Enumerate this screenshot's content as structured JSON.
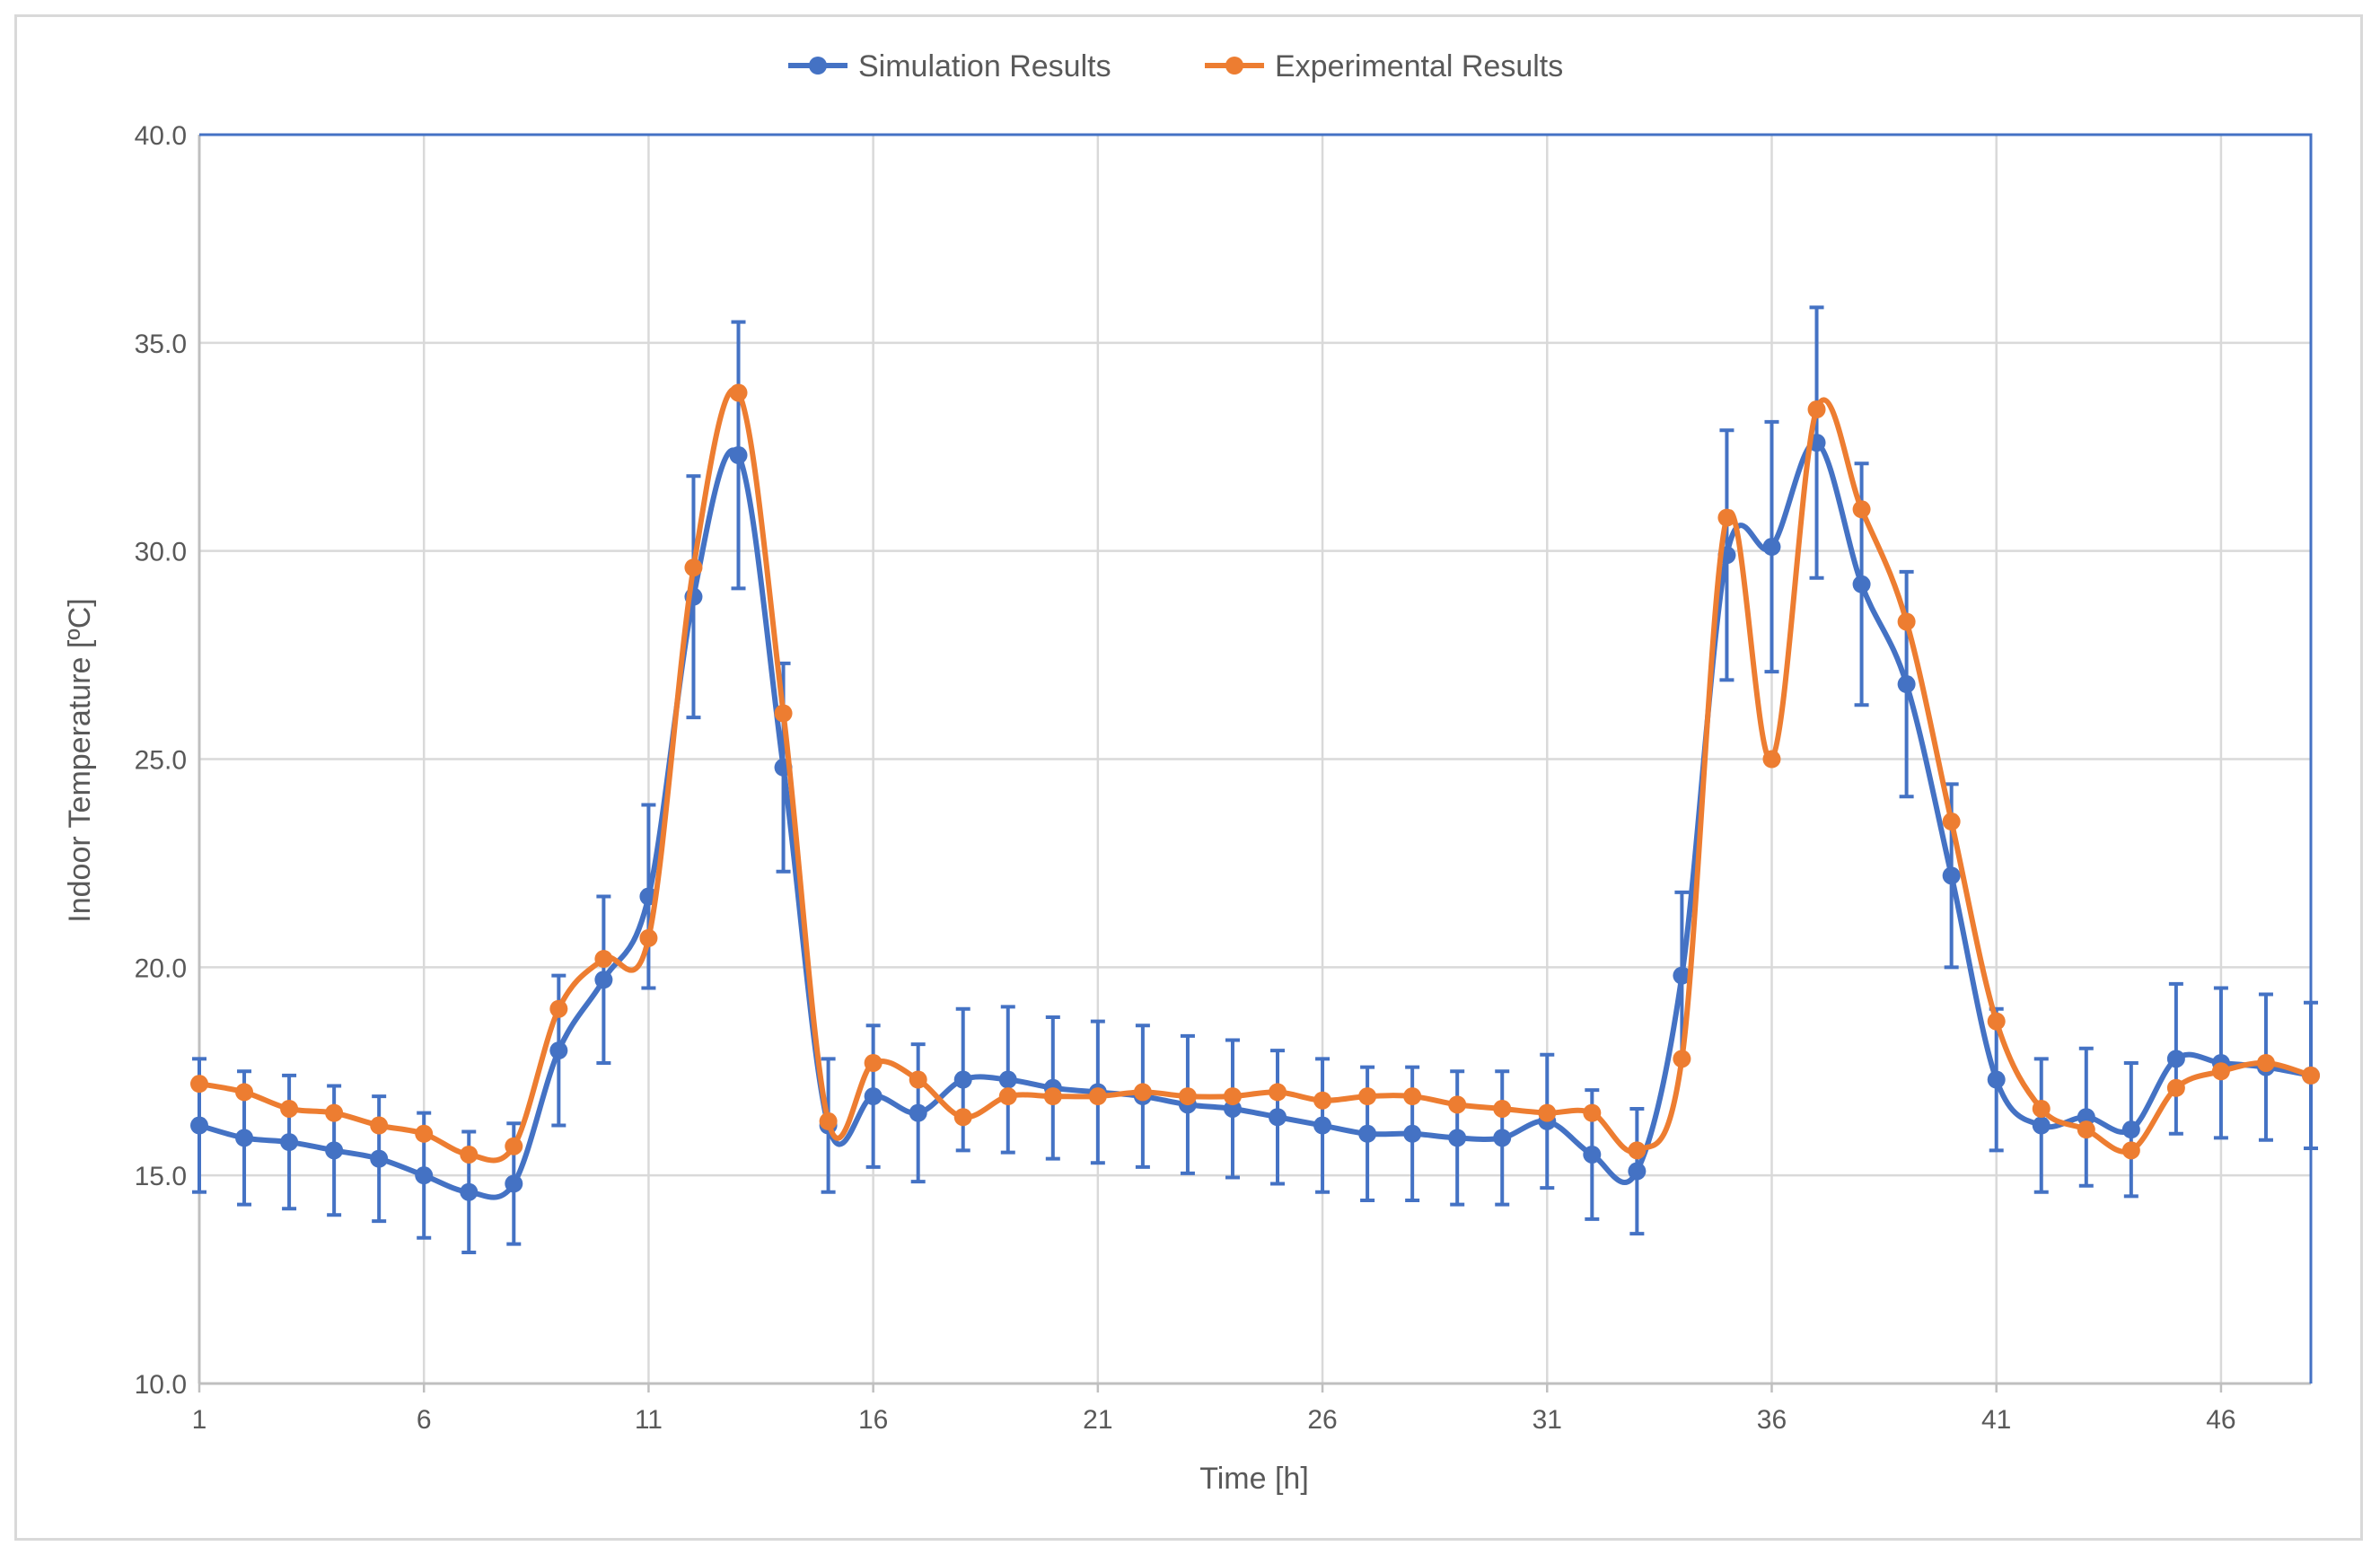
{
  "chart_data": {
    "type": "line",
    "title": "",
    "xlabel": "Time [h]",
    "ylabel": "Indoor Temperature [ºC]",
    "xlim": [
      1,
      48
    ],
    "ylim": [
      10,
      40
    ],
    "x_ticks": [
      1,
      6,
      11,
      16,
      21,
      26,
      31,
      36,
      41,
      46
    ],
    "y_ticks": [
      "10.0",
      "15.0",
      "20.0",
      "25.0",
      "30.0",
      "35.0",
      "40.0"
    ],
    "grid": true,
    "legend_position": "top",
    "x": [
      1,
      2,
      3,
      4,
      5,
      6,
      7,
      8,
      9,
      10,
      11,
      12,
      13,
      14,
      15,
      16,
      17,
      18,
      19,
      20,
      21,
      22,
      23,
      24,
      25,
      26,
      27,
      28,
      29,
      30,
      31,
      32,
      33,
      34,
      35,
      36,
      37,
      38,
      39,
      40,
      41,
      42,
      43,
      44,
      45,
      46,
      47,
      48
    ],
    "series": [
      {
        "name": "Simulation Results",
        "color": "#4472c4",
        "values": [
          16.2,
          15.9,
          15.8,
          15.6,
          15.4,
          15.0,
          14.6,
          14.8,
          18.0,
          19.7,
          21.7,
          28.9,
          32.3,
          24.8,
          16.2,
          16.9,
          16.5,
          17.3,
          17.3,
          17.1,
          17.0,
          16.9,
          16.7,
          16.6,
          16.4,
          16.2,
          16.0,
          16.0,
          15.9,
          15.9,
          16.3,
          15.5,
          15.1,
          19.8,
          29.9,
          30.1,
          32.6,
          29.2,
          26.8,
          22.2,
          17.3,
          16.2,
          16.4,
          16.1,
          17.8,
          17.7,
          17.6,
          17.4
        ],
        "error": [
          1.6,
          1.6,
          1.6,
          1.55,
          1.5,
          1.5,
          1.45,
          1.45,
          1.8,
          2.0,
          2.2,
          2.9,
          3.2,
          2.5,
          1.6,
          1.7,
          1.65,
          1.7,
          1.75,
          1.7,
          1.7,
          1.7,
          1.65,
          1.65,
          1.6,
          1.6,
          1.6,
          1.6,
          1.6,
          1.6,
          1.6,
          1.55,
          1.5,
          2.0,
          3.0,
          3.0,
          3.25,
          2.9,
          2.7,
          2.2,
          1.7,
          1.6,
          1.65,
          1.6,
          1.8,
          1.8,
          1.75,
          1.75
        ]
      },
      {
        "name": "Experimental Results",
        "color": "#ed7d31",
        "values": [
          17.2,
          17.0,
          16.6,
          16.5,
          16.2,
          16.0,
          15.5,
          15.7,
          19.0,
          20.2,
          20.7,
          29.6,
          33.8,
          26.1,
          16.3,
          17.7,
          17.3,
          16.4,
          16.9,
          16.9,
          16.9,
          17.0,
          16.9,
          16.9,
          17.0,
          16.8,
          16.9,
          16.9,
          16.7,
          16.6,
          16.5,
          16.5,
          15.6,
          17.8,
          30.8,
          25.0,
          33.4,
          31.0,
          28.3,
          23.5,
          18.7,
          16.6,
          16.1,
          15.6,
          17.1,
          17.5,
          17.7,
          17.4
        ]
      }
    ]
  }
}
